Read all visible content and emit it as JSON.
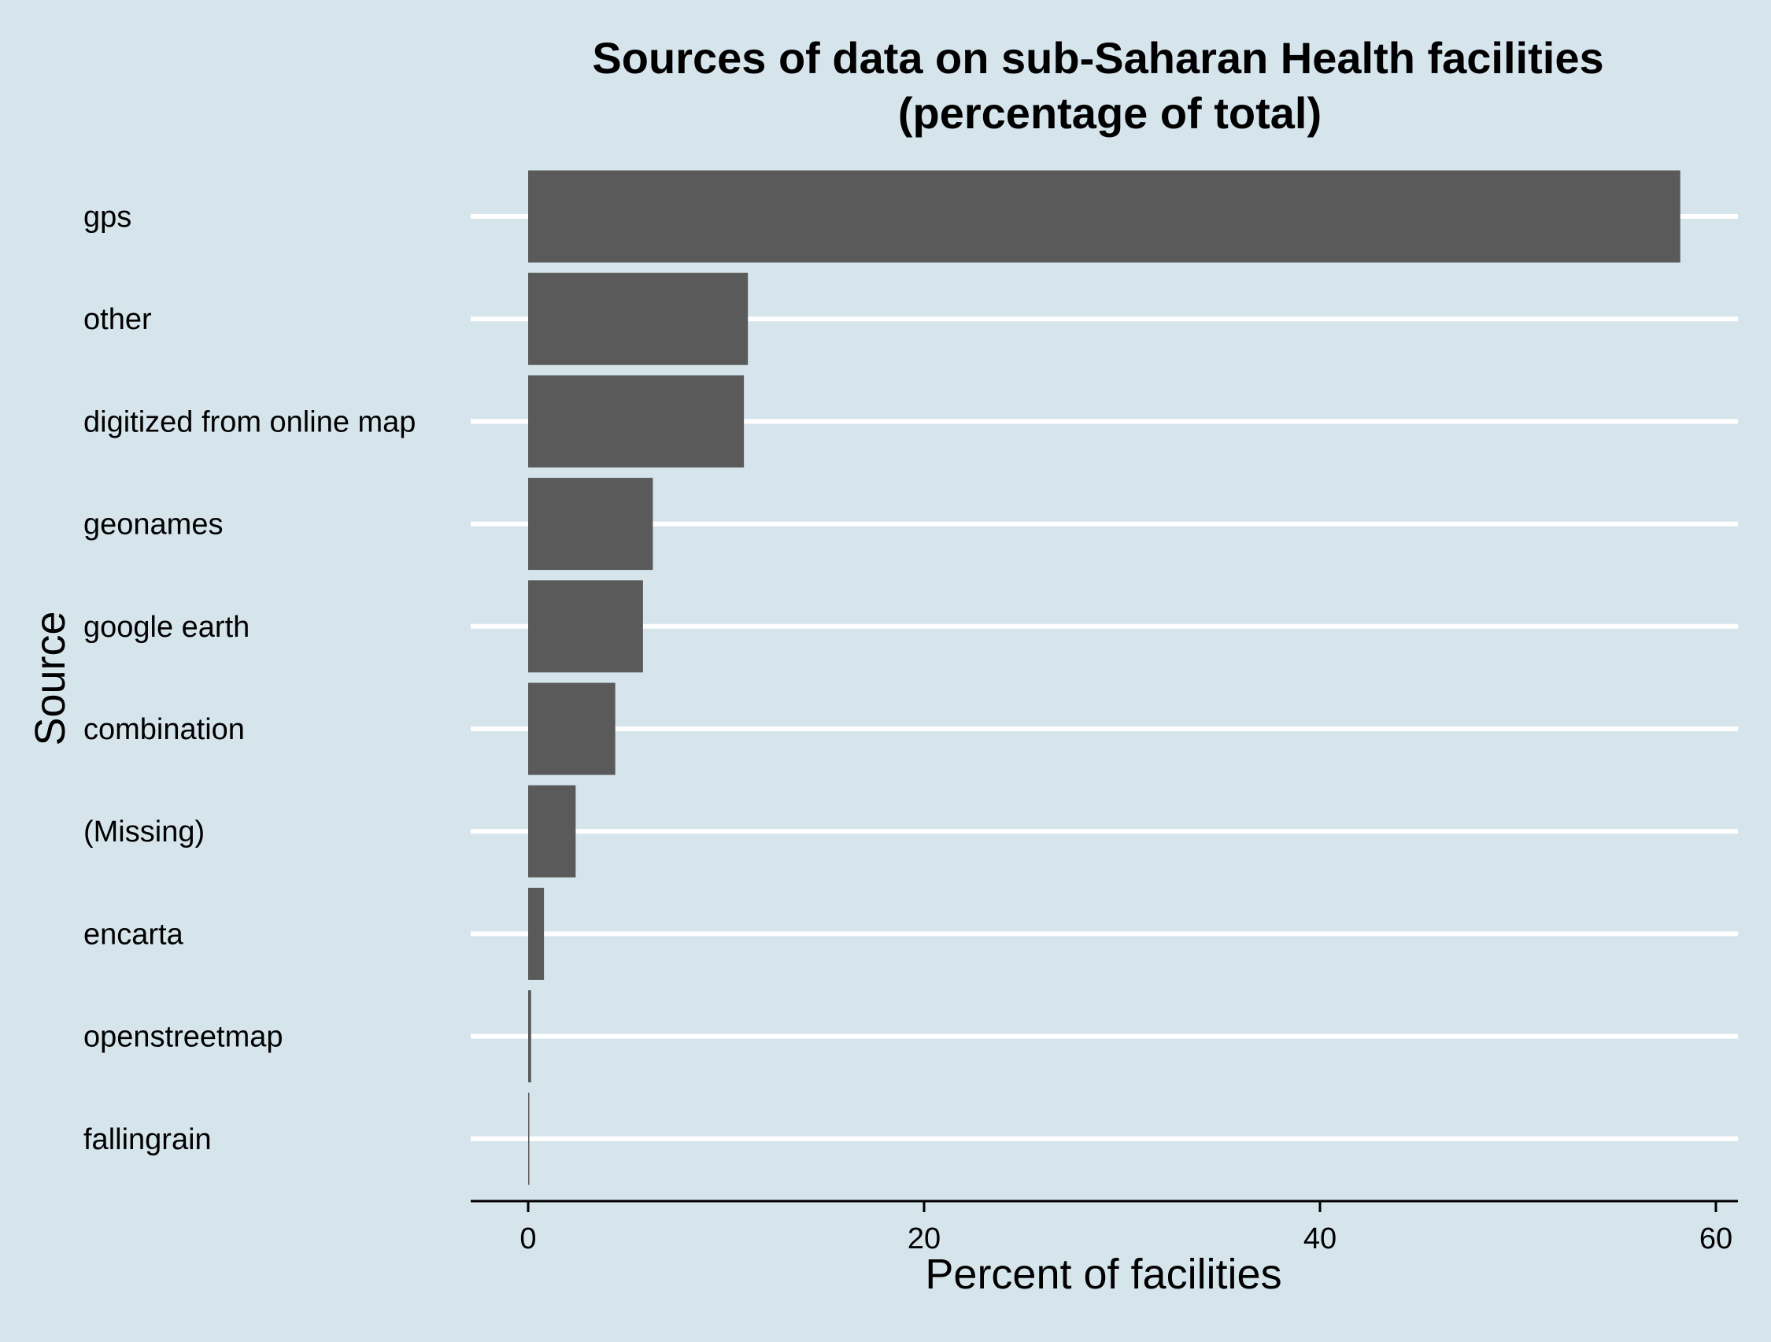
{
  "chart_data": {
    "type": "bar",
    "orientation": "horizontal",
    "title": "Sources of data on sub-Saharan Health facilities",
    "subtitle": "(percentage of total)",
    "xlabel": "Percent of facilities",
    "ylabel": "Source",
    "xlim": [
      0,
      60
    ],
    "xticks": [
      0,
      20,
      40,
      60
    ],
    "grid": true,
    "categories": [
      "gps",
      "other",
      "digitized from online map",
      "geonames",
      "google earth",
      "combination",
      "(Missing)",
      "encarta",
      "openstreetmap",
      "fallingrain"
    ],
    "values": [
      58.2,
      11.1,
      10.9,
      6.3,
      5.8,
      4.4,
      2.4,
      0.8,
      0.15,
      0.05
    ],
    "colors": {
      "background": "#d6e4ec",
      "bar": "#5a5a5a",
      "gridline": "#ffffff",
      "axis": "#000000",
      "text": "#000000"
    }
  }
}
